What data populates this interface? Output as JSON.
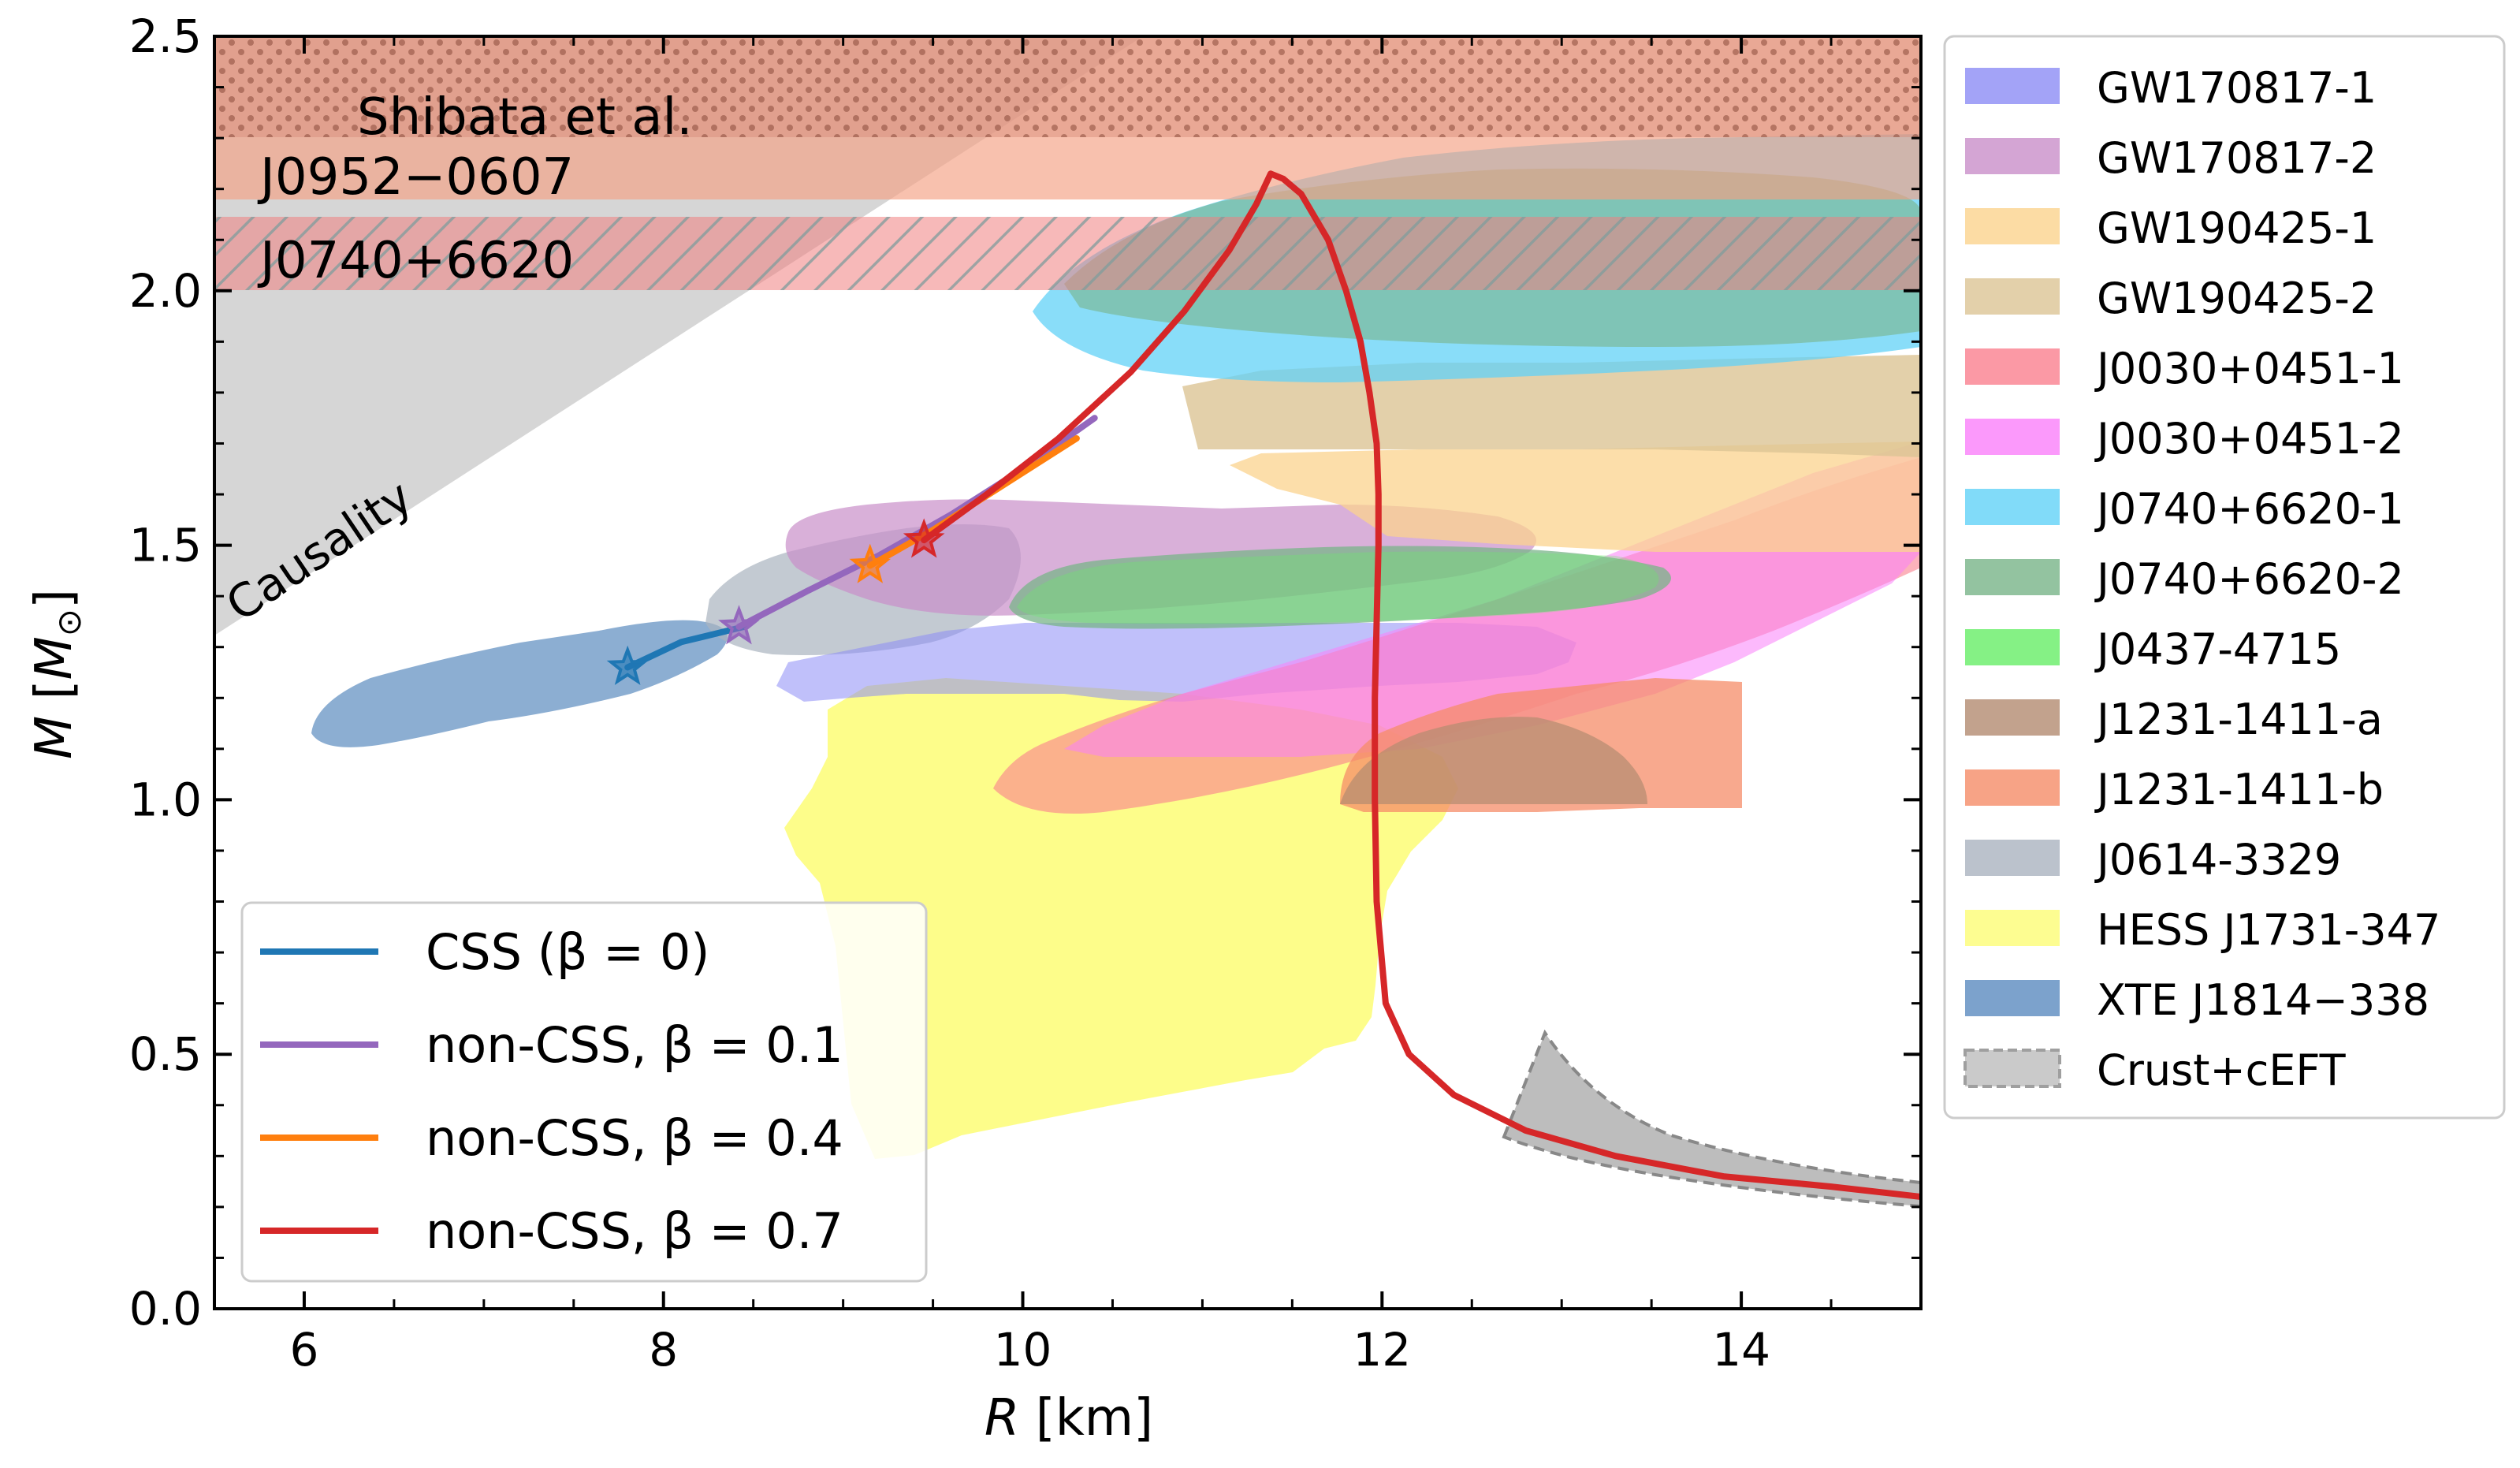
{
  "chart_data": {
    "type": "line",
    "xlabel": "R [km]",
    "ylabel": "M [M⊙]",
    "xlim": [
      5.5,
      15
    ],
    "ylim": [
      0,
      2.5
    ],
    "x_ticks": [
      "6",
      "8",
      "10",
      "12",
      "14"
    ],
    "y_ticks": [
      "0.0",
      "0.5",
      "1.0",
      "1.5",
      "2.0",
      "2.5"
    ],
    "grid": false,
    "legend_lines_position": "lower-left",
    "legend_regions_position": "outside-right",
    "series": [
      {
        "name": "CSS (β = 0)",
        "color": "#1f77b4",
        "x": [
          7.8,
          8.1,
          8.45
        ],
        "y": [
          1.26,
          1.31,
          1.34
        ],
        "marker": "star",
        "marker_point": [
          7.8,
          1.26
        ]
      },
      {
        "name": "non-CSS, β = 0.1",
        "color": "#9467bd",
        "x": [
          8.42,
          8.8,
          9.2,
          9.6,
          10.0,
          10.4
        ],
        "y": [
          1.34,
          1.41,
          1.48,
          1.56,
          1.65,
          1.75
        ],
        "marker": "star",
        "marker_point": [
          8.42,
          1.34
        ]
      },
      {
        "name": "non-CSS, β = 0.4",
        "color": "#ff7f0e",
        "x": [
          9.15,
          9.5,
          9.9,
          10.3
        ],
        "y": [
          1.46,
          1.53,
          1.62,
          1.71
        ],
        "marker": "star",
        "marker_point": [
          9.15,
          1.46
        ]
      },
      {
        "name": "non-CSS, β = 0.7",
        "color": "#d62728",
        "x": [
          9.45,
          9.8,
          10.2,
          10.6,
          10.9,
          11.15,
          11.3,
          11.38,
          11.45,
          11.55,
          11.7,
          11.8,
          11.88,
          11.93,
          11.97,
          11.98,
          11.98,
          11.97,
          11.96,
          11.96,
          11.97,
          12.02,
          12.15,
          12.4,
          12.8,
          13.3,
          13.9,
          14.5,
          15.0
        ],
        "y": [
          1.51,
          1.6,
          1.71,
          1.84,
          1.96,
          2.08,
          2.17,
          2.23,
          2.22,
          2.19,
          2.1,
          2.0,
          1.9,
          1.8,
          1.7,
          1.6,
          1.5,
          1.35,
          1.2,
          1.0,
          0.8,
          0.6,
          0.5,
          0.42,
          0.35,
          0.3,
          0.26,
          0.24,
          0.22
        ],
        "marker": "star",
        "marker_point": [
          9.45,
          1.51
        ]
      }
    ],
    "regions": [
      {
        "name": "GW170817-1",
        "color": "#8c8cf5"
      },
      {
        "name": "GW170817-2",
        "color": "#c98fc9"
      },
      {
        "name": "GW190425-1",
        "color": "#fbd38d"
      },
      {
        "name": "GW190425-2",
        "color": "#dcc495"
      },
      {
        "name": "J0030+0451-1",
        "color": "#fa7f8e"
      },
      {
        "name": "J0030+0451-2",
        "color": "#fa7ffa"
      },
      {
        "name": "J0740+6620-1",
        "color": "#62d2f7"
      },
      {
        "name": "J0740+6620-2",
        "color": "#78b488"
      },
      {
        "name": "J0437-4715",
        "color": "#66ee66"
      },
      {
        "name": "J1231-1411-a",
        "color": "#b38b70"
      },
      {
        "name": "J1231-1411-b",
        "color": "#f58c68"
      },
      {
        "name": "J0614-3329",
        "color": "#aab3bf"
      },
      {
        "name": "HESS J1731-347",
        "color": "#fdfd75"
      },
      {
        "name": "XTE J1814−338",
        "color": "#5b8bbf"
      },
      {
        "name": "Crust+cEFT",
        "color": "#bdbdbd"
      }
    ],
    "bands": [
      {
        "label": "Shibata et al.",
        "range": [
          2.3,
          2.5
        ],
        "color": "#e8a088"
      },
      {
        "label": "J0952−0607",
        "range": [
          2.18,
          2.5
        ],
        "color": "#f4a082"
      },
      {
        "label": "J0740+6620",
        "range": [
          2.0,
          2.15
        ],
        "color": "#f08080"
      }
    ],
    "annotations": [
      "Causality"
    ]
  }
}
